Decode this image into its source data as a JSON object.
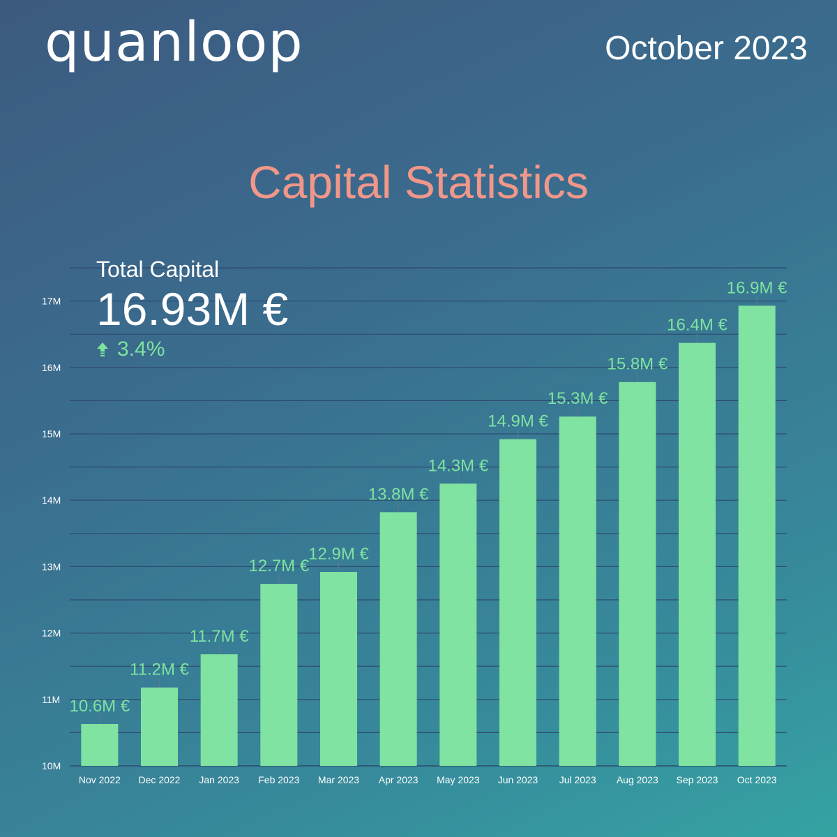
{
  "header": {
    "logo_text": "quanloop",
    "report_date": "October 2023"
  },
  "kpi": {
    "label": "Total Capital",
    "value": "16.93M €",
    "change": "3.4%",
    "change_icon": "arrow-up-icon"
  },
  "colors": {
    "bar": "#80e3a1",
    "title": "#f0978a",
    "label_green": "#7ee3a0"
  },
  "chart_data": {
    "type": "bar",
    "title": "Capital Statistics",
    "xlabel": "",
    "ylabel": "",
    "categories": [
      "Nov 2022",
      "Dec 2022",
      "Jan 2023",
      "Feb 2023",
      "Mar 2023",
      "Apr 2023",
      "May 2023",
      "Jun 2023",
      "Jul 2023",
      "Aug 2023",
      "Sep 2023",
      "Oct 2023"
    ],
    "values": [
      10.63,
      11.18,
      11.68,
      12.74,
      12.92,
      13.82,
      14.25,
      14.92,
      15.26,
      15.78,
      16.37,
      16.93
    ],
    "data_labels": [
      "10.6M €",
      "11.2M €",
      "11.7M €",
      "12.7M €",
      "12.9M €",
      "13.8M €",
      "14.3M €",
      "14.9M €",
      "15.3M €",
      "15.8M €",
      "16.4M €",
      "16.9M €"
    ],
    "ylim": [
      10,
      17.5
    ],
    "yticks": [
      10,
      11,
      12,
      13,
      14,
      15,
      16,
      17
    ],
    "ytick_labels": [
      "10M",
      "11M",
      "12M",
      "13M",
      "14M",
      "15M",
      "16M",
      "17M"
    ],
    "grid": true,
    "legend": "none"
  }
}
